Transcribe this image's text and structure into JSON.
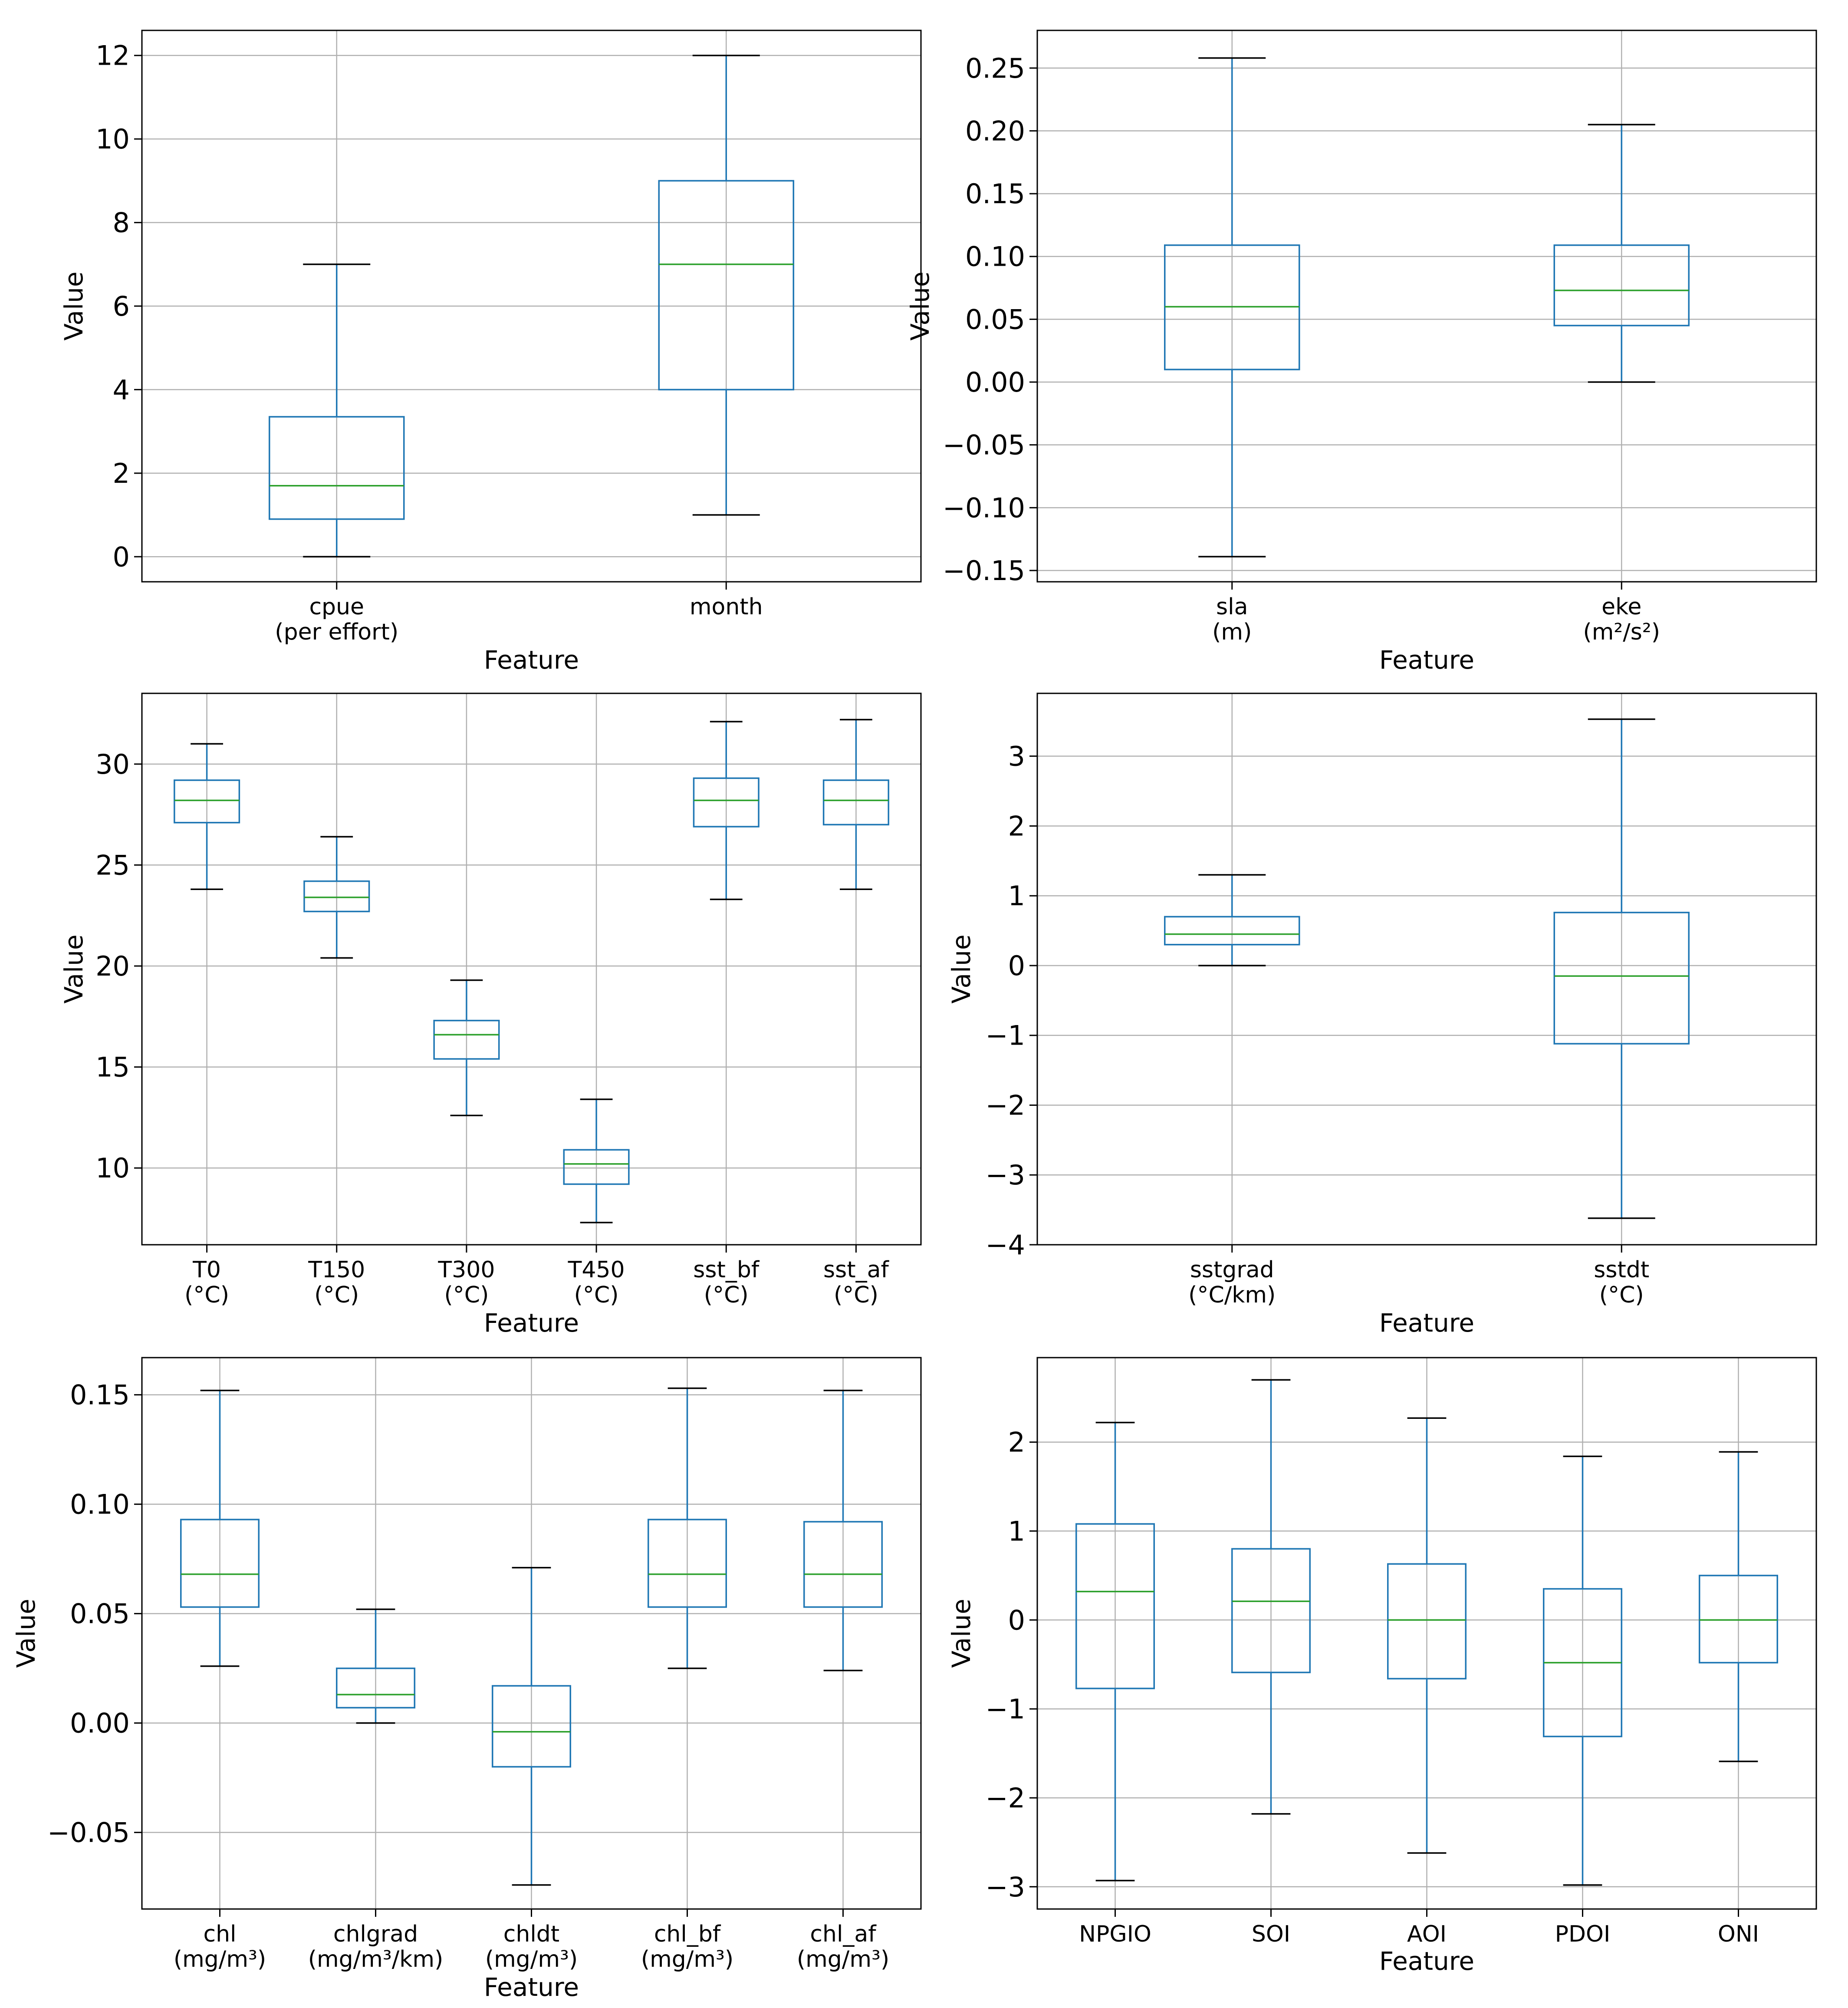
{
  "colors": {
    "box": "#1f77b4",
    "median": "#2ca02c",
    "cap": "#000000",
    "grid": "#b0b0b0",
    "frame": "#000000"
  },
  "chart_data": [
    {
      "type": "boxplot",
      "xlabel": "Feature",
      "ylabel": "Value",
      "grid": true,
      "ylim": [
        -0.6,
        12.6
      ],
      "yticks": [
        0,
        2,
        4,
        6,
        8,
        10,
        12
      ],
      "ytick_labels": [
        "0",
        "2",
        "4",
        "6",
        "8",
        "10",
        "12"
      ],
      "categories": [
        {
          "name": "cpue",
          "unit": "(per effort)",
          "whisker_low": 0,
          "q1": 0.9,
          "median": 1.7,
          "q3": 3.35,
          "whisker_high": 7.0
        },
        {
          "name": "month",
          "unit": "",
          "whisker_low": 1,
          "q1": 4,
          "median": 7,
          "q3": 9,
          "whisker_high": 12
        }
      ]
    },
    {
      "type": "boxplot",
      "xlabel": "Feature",
      "ylabel": "Value",
      "grid": true,
      "ylim": [
        -0.159,
        0.28
      ],
      "yticks": [
        -0.15,
        -0.1,
        -0.05,
        0.0,
        0.05,
        0.1,
        0.15,
        0.2,
        0.25
      ],
      "ytick_labels": [
        "−0.15",
        "−0.10",
        "−0.05",
        "0.00",
        "0.05",
        "0.10",
        "0.15",
        "0.20",
        "0.25"
      ],
      "categories": [
        {
          "name": "sla",
          "unit": "(m)",
          "whisker_low": -0.139,
          "q1": 0.01,
          "median": 0.06,
          "q3": 0.109,
          "whisker_high": 0.258
        },
        {
          "name": "eke",
          "unit": "(m²/s²)",
          "whisker_low": 0.0,
          "q1": 0.045,
          "median": 0.073,
          "q3": 0.109,
          "whisker_high": 0.205
        }
      ]
    },
    {
      "type": "boxplot",
      "xlabel": "Feature",
      "ylabel": "Value",
      "grid": true,
      "ylim": [
        6.2,
        33.5
      ],
      "yticks": [
        10,
        15,
        20,
        25,
        30
      ],
      "ytick_labels": [
        "10",
        "15",
        "20",
        "25",
        "30"
      ],
      "categories": [
        {
          "name": "T0",
          "unit": "(°C)",
          "whisker_low": 23.8,
          "q1": 27.1,
          "median": 28.2,
          "q3": 29.2,
          "whisker_high": 31.0
        },
        {
          "name": "T150",
          "unit": "(°C)",
          "whisker_low": 20.4,
          "q1": 22.7,
          "median": 23.4,
          "q3": 24.2,
          "whisker_high": 26.4
        },
        {
          "name": "T300",
          "unit": "(°C)",
          "whisker_low": 12.6,
          "q1": 15.4,
          "median": 16.6,
          "q3": 17.3,
          "whisker_high": 19.3
        },
        {
          "name": "T450",
          "unit": "(°C)",
          "whisker_low": 7.3,
          "q1": 9.2,
          "median": 10.2,
          "q3": 10.9,
          "whisker_high": 13.4
        },
        {
          "name": "sst_bf",
          "unit": "(°C)",
          "whisker_low": 23.3,
          "q1": 26.9,
          "median": 28.2,
          "q3": 29.3,
          "whisker_high": 32.1
        },
        {
          "name": "sst_af",
          "unit": "(°C)",
          "whisker_low": 23.8,
          "q1": 27.0,
          "median": 28.2,
          "q3": 29.2,
          "whisker_high": 32.2
        }
      ]
    },
    {
      "type": "boxplot",
      "xlabel": "Feature",
      "ylabel": "Value",
      "grid": true,
      "ylim": [
        -4.0,
        3.9
      ],
      "yticks": [
        -4,
        -3,
        -2,
        -1,
        0,
        1,
        2,
        3
      ],
      "ytick_labels": [
        "−4",
        "−3",
        "−2",
        "−1",
        "0",
        "1",
        "2",
        "3"
      ],
      "categories": [
        {
          "name": "sstgrad",
          "unit": "(°C/km)",
          "whisker_low": 0.0,
          "q1": 0.3,
          "median": 0.45,
          "q3": 0.7,
          "whisker_high": 1.3
        },
        {
          "name": "sstdt",
          "unit": "(°C)",
          "whisker_low": -3.62,
          "q1": -1.12,
          "median": -0.15,
          "q3": 0.76,
          "whisker_high": 3.53
        }
      ]
    },
    {
      "type": "boxplot",
      "xlabel": "Feature",
      "ylabel": "Value",
      "grid": true,
      "ylim": [
        -0.085,
        0.167
      ],
      "yticks": [
        -0.05,
        0.0,
        0.05,
        0.1,
        0.15
      ],
      "ytick_labels": [
        "−0.05",
        "0.00",
        "0.05",
        "0.10",
        "0.15"
      ],
      "categories": [
        {
          "name": "chl",
          "unit": "(mg/m³)",
          "whisker_low": 0.026,
          "q1": 0.053,
          "median": 0.068,
          "q3": 0.093,
          "whisker_high": 0.152
        },
        {
          "name": "chlgrad",
          "unit": "(mg/m³/km)",
          "whisker_low": 0.0,
          "q1": 0.007,
          "median": 0.013,
          "q3": 0.025,
          "whisker_high": 0.052
        },
        {
          "name": "chldt",
          "unit": "(mg/m³)",
          "whisker_low": -0.074,
          "q1": -0.02,
          "median": -0.004,
          "q3": 0.017,
          "whisker_high": 0.071
        },
        {
          "name": "chl_bf",
          "unit": "(mg/m³)",
          "whisker_low": 0.025,
          "q1": 0.053,
          "median": 0.068,
          "q3": 0.093,
          "whisker_high": 0.153
        },
        {
          "name": "chl_af",
          "unit": "(mg/m³)",
          "whisker_low": 0.024,
          "q1": 0.053,
          "median": 0.068,
          "q3": 0.092,
          "whisker_high": 0.152
        }
      ]
    },
    {
      "type": "boxplot",
      "xlabel": "Feature",
      "ylabel": "Value",
      "grid": true,
      "ylim": [
        -3.25,
        2.95
      ],
      "yticks": [
        -3,
        -2,
        -1,
        0,
        1,
        2
      ],
      "ytick_labels": [
        "−3",
        "−2",
        "−1",
        "0",
        "1",
        "2"
      ],
      "categories": [
        {
          "name": "NPGIO",
          "unit": "",
          "whisker_low": -2.93,
          "q1": -0.77,
          "median": 0.32,
          "q3": 1.08,
          "whisker_high": 2.22
        },
        {
          "name": "SOI",
          "unit": "",
          "whisker_low": -2.18,
          "q1": -0.59,
          "median": 0.21,
          "q3": 0.8,
          "whisker_high": 2.7
        },
        {
          "name": "AOI",
          "unit": "",
          "whisker_low": -2.62,
          "q1": -0.66,
          "median": 0.0,
          "q3": 0.63,
          "whisker_high": 2.27
        },
        {
          "name": "PDOI",
          "unit": "",
          "whisker_low": -2.98,
          "q1": -1.31,
          "median": -0.48,
          "q3": 0.35,
          "whisker_high": 1.84
        },
        {
          "name": "ONI",
          "unit": "",
          "whisker_low": -1.59,
          "q1": -0.48,
          "median": 0.0,
          "q3": 0.5,
          "whisker_high": 1.89
        }
      ]
    }
  ]
}
